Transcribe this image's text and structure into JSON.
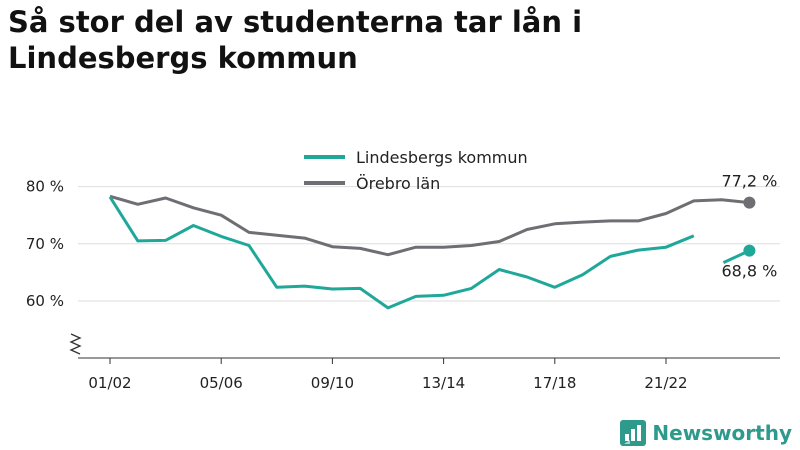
{
  "title": "Så stor del av studenterna tar lån i Lindesbergs kommun",
  "brand": {
    "name": "Newsworthy",
    "logo_icon": "bar-chart-logo-icon"
  },
  "chart_data": {
    "type": "line",
    "x": [
      "01/02",
      "02/03",
      "03/04",
      "04/05",
      "05/06",
      "06/07",
      "07/08",
      "08/09",
      "09/10",
      "10/11",
      "11/12",
      "12/13",
      "13/14",
      "14/15",
      "15/16",
      "16/17",
      "17/18",
      "18/19",
      "19/20",
      "20/21",
      "21/22",
      "22/23",
      "23/24",
      "24/25"
    ],
    "x_tick_labels": [
      "01/02",
      "05/06",
      "09/10",
      "13/14",
      "17/18",
      "21/22"
    ],
    "y_ticks": [
      "60 %",
      "70 %",
      "80 %"
    ],
    "ylim": [
      50,
      85
    ],
    "grid": true,
    "legend_position": "top-center",
    "series": [
      {
        "name": "Lindesbergs kommun",
        "color": "#1fa89a",
        "values": [
          78.2,
          70.5,
          70.6,
          73.2,
          71.3,
          69.7,
          62.4,
          62.6,
          62.1,
          62.2,
          58.8,
          60.8,
          61.0,
          62.2,
          65.5,
          64.2,
          62.4,
          64.6,
          67.8,
          68.9,
          69.4,
          71.4,
          null,
          68.8
        ],
        "end_label": "68,8 %"
      },
      {
        "name": "Örebro län",
        "color": "#6e6e73",
        "values": [
          78.3,
          76.9,
          78.0,
          76.3,
          75.0,
          72.0,
          71.5,
          71.0,
          69.5,
          69.2,
          68.1,
          69.4,
          69.4,
          69.7,
          70.4,
          72.5,
          73.5,
          73.8,
          74.0,
          74.0,
          75.3,
          77.5,
          77.7,
          77.2
        ],
        "end_label": "77,2 %"
      }
    ]
  }
}
